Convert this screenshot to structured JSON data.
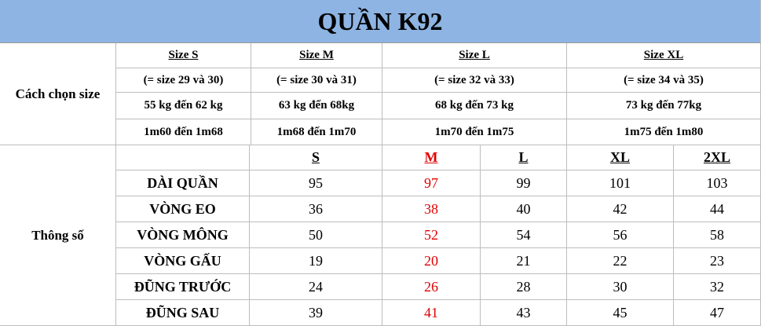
{
  "title": "QUẦN K92",
  "size_guide": {
    "label": "Cách chọn size",
    "columns": [
      {
        "size": "Size S",
        "equiv": "(= size 29 và 30)",
        "weight": "55 kg đến 62 kg",
        "height": "1m60 đến 1m68"
      },
      {
        "size": "Size M",
        "equiv": "(= size 30 và 31)",
        "weight": "63 kg đến 68kg",
        "height": "1m68 đến 1m70"
      },
      {
        "size": "Size L",
        "equiv": "(= size 32 và 33)",
        "weight": "68 kg đến 73 kg",
        "height": "1m70 đến 1m75"
      },
      {
        "size": "Size XL",
        "equiv": "(= size 34 và 35)",
        "weight": "73 kg đến 77kg",
        "height": "1m75 đến 1m80"
      }
    ]
  },
  "measurements": {
    "label": "Thông số",
    "sizes": [
      "S",
      "M",
      "L",
      "XL",
      "2XL"
    ],
    "rows": [
      {
        "name": "DÀI QUẦN",
        "values": [
          95,
          97,
          99,
          101,
          103
        ]
      },
      {
        "name": "VÒNG EO",
        "values": [
          36,
          38,
          40,
          42,
          44
        ]
      },
      {
        "name": "VÒNG MÔNG",
        "values": [
          50,
          52,
          54,
          56,
          58
        ]
      },
      {
        "name": "VÒNG GẤU",
        "values": [
          19,
          20,
          21,
          22,
          23
        ]
      },
      {
        "name": "ĐŨNG TRƯỚC",
        "values": [
          24,
          26,
          28,
          30,
          32
        ]
      },
      {
        "name": "ĐŨNG SAU",
        "values": [
          39,
          41,
          43,
          45,
          47
        ]
      }
    ]
  }
}
